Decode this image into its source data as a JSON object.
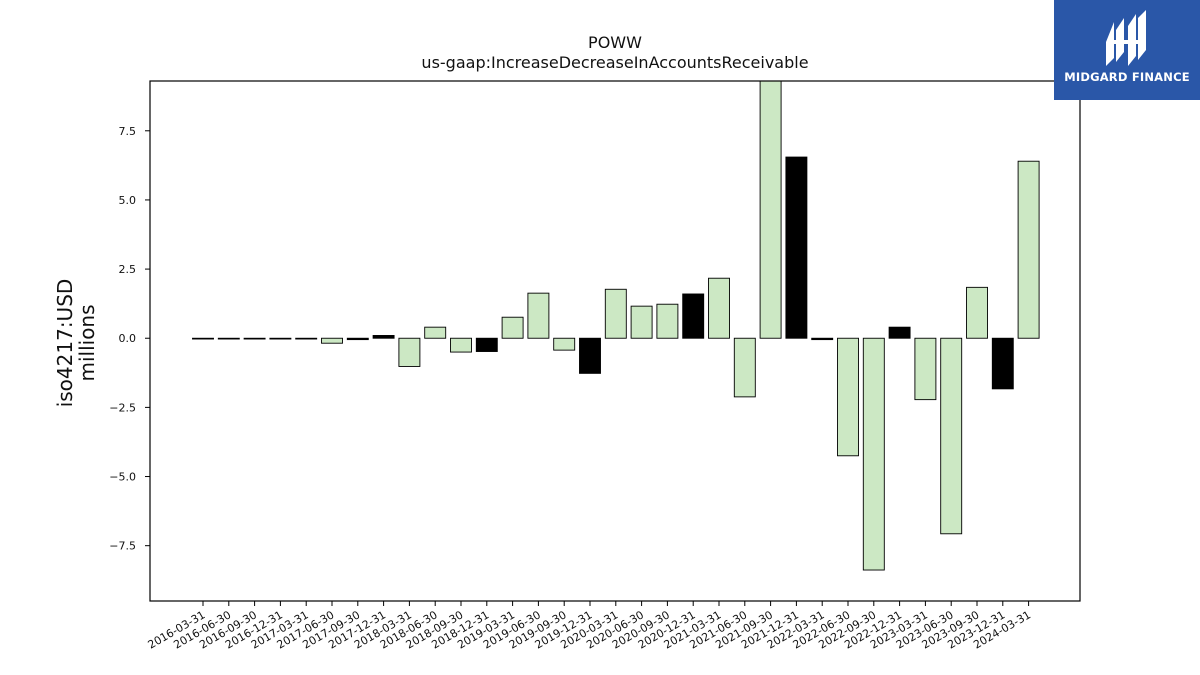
{
  "logo": {
    "text": "MIDGARD FINANCE"
  },
  "chart_data": {
    "type": "bar",
    "title": "POWW",
    "subtitle": "us-gaap:IncreaseDecreaseInAccountsReceivable",
    "ylabel": [
      "iso4217:USD",
      "millions"
    ],
    "ylim": [
      -9.5,
      9.3
    ],
    "yticks": [
      -7.5,
      -5.0,
      -2.5,
      0.0,
      2.5,
      5.0,
      7.5
    ],
    "ytick_labels": [
      "−7.5",
      "−5.0",
      "−2.5",
      "0.0",
      "2.5",
      "5.0",
      "7.5"
    ],
    "categories": [
      "2016-03-31",
      "2016-06-30",
      "2016-09-30",
      "2016-12-31",
      "2017-03-31",
      "2017-06-30",
      "2017-09-30",
      "2017-12-31",
      "2018-03-31",
      "2018-06-30",
      "2018-09-30",
      "2018-12-31",
      "2019-03-31",
      "2019-06-30",
      "2019-09-30",
      "2019-12-31",
      "2020-03-31",
      "2020-06-30",
      "2020-09-30",
      "2020-12-31",
      "2021-03-31",
      "2021-06-30",
      "2021-09-30",
      "2021-12-31",
      "2022-03-31",
      "2022-06-30",
      "2022-09-30",
      "2022-12-31",
      "2023-03-31",
      "2023-06-30",
      "2023-09-30",
      "2023-12-31",
      "2024-03-31"
    ],
    "values": [
      0.0,
      0.0,
      0.0,
      0.0,
      0.0,
      -0.18,
      -0.05,
      0.1,
      -1.02,
      0.4,
      -0.5,
      -0.48,
      0.76,
      1.63,
      -0.43,
      -1.27,
      1.77,
      1.16,
      1.23,
      1.6,
      2.17,
      -2.12,
      9.3,
      6.55,
      -0.05,
      -4.25,
      -8.38,
      0.4,
      -2.22,
      -7.07,
      1.84,
      -1.83,
      6.4
    ],
    "colors": [
      "light",
      "light",
      "light",
      "light",
      "light",
      "light",
      "dark",
      "dark",
      "light",
      "light",
      "light",
      "dark",
      "light",
      "light",
      "light",
      "dark",
      "light",
      "light",
      "light",
      "dark",
      "light",
      "light",
      "light",
      "dark",
      "dark",
      "light",
      "light",
      "dark",
      "light",
      "light",
      "light",
      "dark",
      "light"
    ],
    "bar_colors": {
      "light": "#cce8c4",
      "dark": "#000000",
      "edge": "#000000"
    },
    "grid": false,
    "legend": false
  }
}
